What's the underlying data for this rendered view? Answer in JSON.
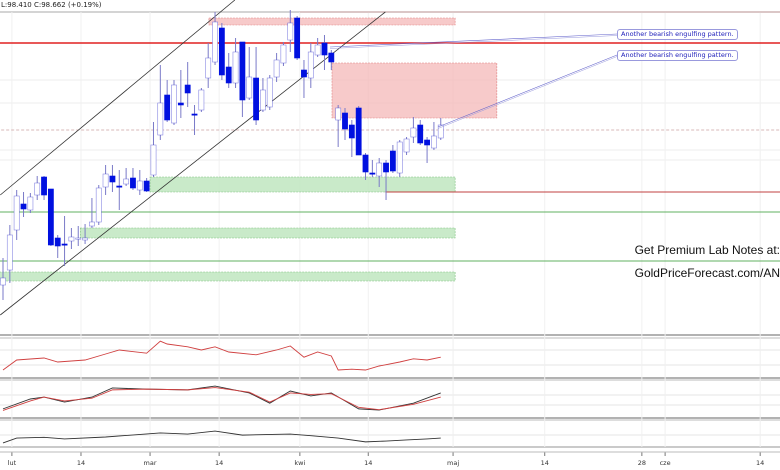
{
  "header": {
    "ohlc_text": "L:98.410 C:98.662 (+0.19%)"
  },
  "promo": {
    "line1": "Get Premium Lab Notes at:",
    "line2": "GoldPriceForecast.com/AN"
  },
  "annotations": [
    "Another bearish engulfing pattern.",
    "Another bearish engulfing pattern."
  ],
  "colors": {
    "bull_body": "#ffffff",
    "bull_border": "#3a3ad0",
    "bear_body": "#0010e0",
    "wick": "#7a7ac8",
    "resistance": "#e02020",
    "support_zone": "#bfe6bf",
    "resistance_zone": "#f4b8b8",
    "indicator_red": "#d04040",
    "indicator_black": "#333333"
  },
  "chart_data": {
    "type": "candlestick",
    "title": "",
    "xlabel": "",
    "ylabel": "",
    "ylim": [
      96.65,
      100.0
    ],
    "grid": true,
    "x_ticks": [
      {
        "label": "lut",
        "index": 1.3
      },
      {
        "label": "14",
        "index": 11.4
      },
      {
        "label": "mar",
        "index": 21.5
      },
      {
        "label": "14",
        "index": 31.6
      },
      {
        "label": "kwi",
        "index": 43.4
      },
      {
        "label": "14",
        "index": 53.4
      },
      {
        "label": "maj",
        "index": 65.8
      },
      {
        "label": "14",
        "index": 79.2
      },
      {
        "label": "28",
        "index": 93.4
      },
      {
        "label": "cze",
        "index": 96.8
      },
      {
        "label": "14",
        "index": 110.7
      }
    ],
    "candles_ohlc": [
      [
        97.15,
        97.42,
        97.0,
        97.22
      ],
      [
        97.3,
        97.75,
        97.17,
        97.65
      ],
      [
        97.7,
        98.1,
        97.6,
        98.04
      ],
      [
        97.96,
        98.08,
        97.83,
        97.91
      ],
      [
        97.9,
        98.07,
        97.87,
        98.03
      ],
      [
        98.05,
        98.24,
        98.0,
        98.17
      ],
      [
        98.23,
        98.24,
        98.0,
        98.05
      ],
      [
        98.11,
        98.11,
        97.54,
        97.55
      ],
      [
        97.62,
        97.65,
        97.42,
        97.54
      ],
      [
        97.56,
        97.84,
        97.34,
        97.55
      ],
      [
        97.59,
        97.72,
        97.51,
        97.63
      ],
      [
        97.62,
        97.74,
        97.54,
        97.62
      ],
      [
        97.6,
        97.76,
        97.56,
        97.62
      ],
      [
        97.74,
        98.02,
        97.72,
        97.78
      ],
      [
        97.78,
        98.15,
        97.75,
        98.12
      ],
      [
        98.13,
        98.35,
        98.05,
        98.26
      ],
      [
        98.24,
        98.35,
        98.08,
        98.18
      ],
      [
        98.14,
        98.3,
        97.9,
        98.13
      ],
      [
        98.16,
        98.32,
        98.14,
        98.21
      ],
      [
        98.22,
        98.32,
        98.1,
        98.12
      ],
      [
        98.1,
        98.3,
        98.05,
        98.19
      ],
      [
        98.19,
        98.22,
        98.08,
        98.09
      ],
      [
        98.25,
        98.78,
        98.23,
        98.55
      ],
      [
        98.65,
        99.35,
        98.6,
        98.97
      ],
      [
        99.05,
        99.2,
        98.78,
        98.8
      ],
      [
        98.77,
        99.2,
        98.75,
        99.15
      ],
      [
        98.97,
        99.3,
        98.82,
        98.95
      ],
      [
        99.15,
        99.38,
        98.93,
        99.07
      ],
      [
        98.86,
        98.95,
        98.65,
        98.85
      ],
      [
        98.9,
        99.12,
        98.88,
        99.1
      ],
      [
        99.22,
        99.57,
        99.12,
        99.42
      ],
      [
        99.38,
        99.88,
        99.35,
        99.78
      ],
      [
        99.72,
        99.77,
        99.2,
        99.25
      ],
      [
        99.33,
        99.47,
        99.12,
        99.17
      ],
      [
        99.17,
        99.62,
        99.12,
        99.48
      ],
      [
        99.58,
        99.58,
        98.83,
        99.0
      ],
      [
        99.02,
        99.53,
        99.0,
        99.23
      ],
      [
        99.22,
        99.53,
        98.75,
        98.8
      ],
      [
        98.9,
        99.22,
        98.88,
        99.1
      ],
      [
        98.93,
        99.25,
        98.9,
        99.22
      ],
      [
        99.23,
        99.47,
        99.18,
        99.4
      ],
      [
        99.37,
        99.58,
        99.34,
        99.55
      ],
      [
        99.6,
        99.9,
        99.48,
        99.77
      ],
      [
        99.82,
        99.84,
        99.4,
        99.42
      ],
      [
        99.3,
        99.4,
        99.02,
        99.23
      ],
      [
        99.22,
        99.57,
        99.12,
        99.48
      ],
      [
        99.45,
        99.62,
        99.43,
        99.55
      ],
      [
        99.57,
        99.65,
        99.3,
        99.45
      ],
      [
        99.47,
        99.5,
        99.3,
        99.38
      ],
      [
        98.8,
        98.95,
        98.53,
        98.92
      ],
      [
        98.87,
        98.92,
        98.6,
        98.71
      ],
      [
        98.75,
        98.8,
        98.43,
        98.62
      ],
      [
        98.92,
        98.94,
        98.45,
        98.45
      ],
      [
        98.45,
        98.47,
        98.2,
        98.28
      ],
      [
        98.27,
        98.4,
        98.23,
        98.26
      ],
      [
        98.24,
        98.42,
        98.13,
        98.37
      ],
      [
        98.37,
        98.4,
        98.0,
        98.28
      ],
      [
        98.49,
        98.55,
        98.27,
        98.29
      ],
      [
        98.27,
        98.6,
        98.23,
        98.58
      ],
      [
        98.48,
        98.63,
        98.45,
        98.61
      ],
      [
        98.63,
        98.83,
        98.57,
        98.72
      ],
      [
        98.75,
        98.8,
        98.55,
        98.57
      ],
      [
        98.6,
        98.63,
        98.37,
        98.55
      ],
      [
        98.52,
        98.78,
        98.5,
        98.64
      ],
      [
        98.62,
        98.82,
        98.6,
        98.75
      ]
    ],
    "trend_lines": [
      {
        "name": "channel-upper",
        "from": [
          -0.4,
          98.05
        ],
        "to": [
          33.9,
          100.0
        ]
      },
      {
        "name": "channel-lower",
        "from": [
          -0.4,
          96.85
        ],
        "to": [
          55.9,
          99.88
        ]
      }
    ],
    "horizontal_lines": [
      {
        "name": "resistance-line",
        "price": 99.57,
        "from_index": -1,
        "color": "#e02020"
      },
      {
        "name": "top-line",
        "price": 99.88,
        "from_index": 43.4,
        "color": "#c8a0a0"
      },
      {
        "name": "dashed-line",
        "price": 98.7,
        "from_index": -1,
        "color": "#d8b8b8"
      },
      {
        "name": "support-red-line",
        "price": 98.08,
        "from_index": 55.9,
        "color": "#c04040"
      },
      {
        "name": "support-green-line-1",
        "price": 97.88,
        "from_index": -1,
        "color": "#60b060"
      },
      {
        "name": "support-green-line-2",
        "price": 97.39,
        "from_index": -1,
        "color": "#60b060"
      }
    ],
    "zones": [
      {
        "name": "resistance-zone-top",
        "from_index": 30.1,
        "to_index": 66.1,
        "high": 99.82,
        "low": 99.75,
        "kind": "resistance"
      },
      {
        "name": "resistance-zone-big",
        "from_index": 48.1,
        "to_index": 72.2,
        "high": 99.37,
        "low": 98.82,
        "kind": "resistance"
      },
      {
        "name": "support-zone-1",
        "from_index": 21.5,
        "to_index": 66.1,
        "high": 98.23,
        "low": 98.08,
        "kind": "support"
      },
      {
        "name": "support-zone-2",
        "from_index": 11.3,
        "to_index": 66.1,
        "high": 97.72,
        "low": 97.62,
        "kind": "support"
      },
      {
        "name": "support-zone-3",
        "from_index": -1,
        "to_index": 66.1,
        "high": 97.28,
        "low": 97.19,
        "kind": "support"
      }
    ],
    "indicators": [
      {
        "panel": 1,
        "color": "#d04040",
        "points": [
          [
            0,
            20
          ],
          [
            2,
            45
          ],
          [
            6,
            50
          ],
          [
            8,
            40
          ],
          [
            12,
            45
          ],
          [
            15,
            60
          ],
          [
            17,
            70
          ],
          [
            21,
            62
          ],
          [
            23,
            92
          ],
          [
            24,
            85
          ],
          [
            27,
            78
          ],
          [
            29,
            70
          ],
          [
            31,
            78
          ],
          [
            33,
            65
          ],
          [
            37,
            58
          ],
          [
            40,
            70
          ],
          [
            42,
            80
          ],
          [
            44,
            52
          ],
          [
            46,
            65
          ],
          [
            48,
            55
          ],
          [
            49,
            20
          ],
          [
            51,
            22
          ],
          [
            53,
            20
          ],
          [
            55,
            30
          ],
          [
            58,
            40
          ],
          [
            60,
            48
          ],
          [
            62,
            45
          ],
          [
            64,
            52
          ]
        ]
      },
      {
        "panel": 2,
        "color": "#333333",
        "points": [
          [
            0,
            24
          ],
          [
            4,
            50
          ],
          [
            6,
            55
          ],
          [
            9,
            42
          ],
          [
            13,
            55
          ],
          [
            16,
            79
          ],
          [
            21,
            76
          ],
          [
            27,
            74
          ],
          [
            31,
            84
          ],
          [
            36,
            66
          ],
          [
            39,
            39
          ],
          [
            42,
            71
          ],
          [
            45,
            58
          ],
          [
            48,
            66
          ],
          [
            52,
            24
          ],
          [
            55,
            21
          ],
          [
            60,
            39
          ],
          [
            64,
            66
          ]
        ]
      },
      {
        "panel": 2,
        "color": "#d04040",
        "points": [
          [
            0,
            20
          ],
          [
            4,
            45
          ],
          [
            6,
            55
          ],
          [
            9,
            45
          ],
          [
            13,
            52
          ],
          [
            16,
            74
          ],
          [
            21,
            76
          ],
          [
            27,
            74
          ],
          [
            31,
            80
          ],
          [
            36,
            68
          ],
          [
            39,
            42
          ],
          [
            42,
            66
          ],
          [
            45,
            62
          ],
          [
            48,
            64
          ],
          [
            52,
            28
          ],
          [
            55,
            22
          ],
          [
            60,
            36
          ],
          [
            64,
            55
          ]
        ]
      },
      {
        "panel": 3,
        "color": "#333333",
        "points": [
          [
            0,
            15
          ],
          [
            2,
            33
          ],
          [
            6,
            36
          ],
          [
            9,
            30
          ],
          [
            15,
            37
          ],
          [
            23,
            52
          ],
          [
            27,
            48
          ],
          [
            31,
            59
          ],
          [
            35,
            44
          ],
          [
            42,
            48
          ],
          [
            45,
            42
          ],
          [
            49,
            33
          ],
          [
            53,
            19
          ],
          [
            56,
            22
          ],
          [
            59,
            26
          ],
          [
            62,
            30
          ],
          [
            64,
            33
          ]
        ]
      }
    ]
  }
}
